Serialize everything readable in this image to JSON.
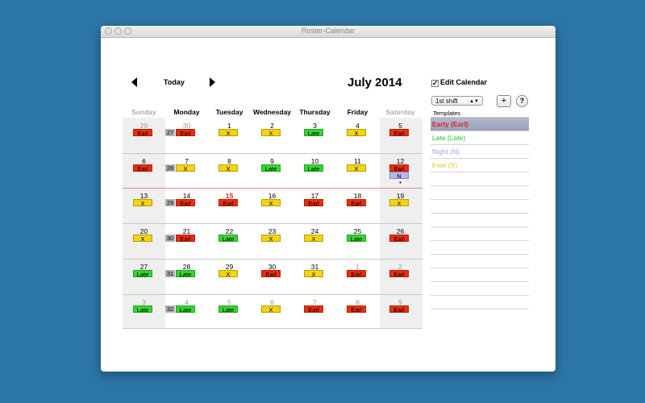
{
  "window": {
    "title": "Roster-Calendar"
  },
  "nav": {
    "today_label": "Today"
  },
  "month_title": "July 2014",
  "weekdays": [
    "Sunday",
    "Monday",
    "Tuesday",
    "Wednesday",
    "Thursday",
    "Friday",
    "Saturday"
  ],
  "colors": {
    "Earl": "#ee2c0c",
    "Late": "#35d62e",
    "X": "#f3d40d",
    "N": "#b6b6ef",
    "week_badge": "#b2b2b2",
    "today": "#e02020"
  },
  "weeks": [
    {
      "week": "27",
      "days": [
        {
          "num": "29",
          "muted": true,
          "shifts": [
            "Earl"
          ]
        },
        {
          "num": "30",
          "muted": true,
          "shifts": [
            "Earl"
          ]
        },
        {
          "num": "1",
          "shifts": [
            "X"
          ]
        },
        {
          "num": "2",
          "shifts": [
            "X"
          ]
        },
        {
          "num": "3",
          "shifts": [
            "Late"
          ]
        },
        {
          "num": "4",
          "shifts": [
            "X"
          ]
        },
        {
          "num": "5",
          "shifts": [
            "Earl"
          ]
        }
      ]
    },
    {
      "week": "28",
      "days": [
        {
          "num": "6",
          "shifts": [
            "Earl"
          ]
        },
        {
          "num": "7",
          "shifts": [
            "X"
          ]
        },
        {
          "num": "8",
          "shifts": [
            "X"
          ]
        },
        {
          "num": "9",
          "shifts": [
            "Late"
          ]
        },
        {
          "num": "10",
          "shifts": [
            "Late"
          ]
        },
        {
          "num": "11",
          "shifts": [
            "X"
          ]
        },
        {
          "num": "12",
          "shifts": [
            "Earl",
            "N"
          ],
          "dot": "•"
        }
      ]
    },
    {
      "week": "29",
      "days": [
        {
          "num": "13",
          "shifts": [
            "X"
          ]
        },
        {
          "num": "14",
          "shifts": [
            "Earl"
          ]
        },
        {
          "num": "15",
          "today": true,
          "shifts": [
            "Earl"
          ]
        },
        {
          "num": "16",
          "shifts": [
            "X"
          ]
        },
        {
          "num": "17",
          "shifts": [
            "Earl"
          ]
        },
        {
          "num": "18",
          "shifts": [
            "Earl"
          ]
        },
        {
          "num": "19",
          "shifts": [
            "X"
          ]
        }
      ]
    },
    {
      "week": "30",
      "days": [
        {
          "num": "20",
          "shifts": [
            "X"
          ]
        },
        {
          "num": "21",
          "shifts": [
            "Earl"
          ]
        },
        {
          "num": "22",
          "shifts": [
            "Late"
          ]
        },
        {
          "num": "23",
          "shifts": [
            "X"
          ]
        },
        {
          "num": "24",
          "shifts": [
            "X"
          ]
        },
        {
          "num": "25",
          "shifts": [
            "Late"
          ]
        },
        {
          "num": "26",
          "shifts": [
            "Earl"
          ]
        }
      ]
    },
    {
      "week": "31",
      "days": [
        {
          "num": "27",
          "shifts": [
            "Late"
          ]
        },
        {
          "num": "28",
          "shifts": [
            "Late"
          ]
        },
        {
          "num": "29",
          "shifts": [
            "X"
          ]
        },
        {
          "num": "30",
          "shifts": [
            "Earl"
          ]
        },
        {
          "num": "31",
          "shifts": [
            "X"
          ]
        },
        {
          "num": "1",
          "muted": true,
          "shifts": [
            "Earl"
          ]
        },
        {
          "num": "2",
          "muted": true,
          "shifts": [
            "Earl"
          ]
        }
      ]
    },
    {
      "week": "32",
      "days": [
        {
          "num": "3",
          "muted": true,
          "shifts": [
            "Late"
          ]
        },
        {
          "num": "4",
          "muted": true,
          "shifts": [
            "Late"
          ]
        },
        {
          "num": "5",
          "muted": true,
          "shifts": [
            "Late"
          ]
        },
        {
          "num": "6",
          "muted": true,
          "shifts": [
            "X"
          ]
        },
        {
          "num": "7",
          "muted": true,
          "shifts": [
            "Earl"
          ]
        },
        {
          "num": "8",
          "muted": true,
          "shifts": [
            "Earl"
          ]
        },
        {
          "num": "9",
          "muted": true,
          "shifts": [
            "Earl"
          ]
        }
      ]
    }
  ],
  "sidebar": {
    "edit_calendar_label": "Edit Calendar",
    "edit_calendar_checked": "✓",
    "shift_select": "1st shift",
    "select_arrow": "▲▼",
    "add_label": "+",
    "help_label": "?",
    "templates_header": "Templates",
    "templates": [
      {
        "label": "Early (Earl)",
        "color": "#d8222a",
        "selected": true
      },
      {
        "label": "Late (Late)",
        "color": "#27c227"
      },
      {
        "label": "Night (N)",
        "color": "#a3a3ea"
      },
      {
        "label": "Free (X)",
        "color": "#e6c21a"
      }
    ],
    "empty_rows": 10
  }
}
